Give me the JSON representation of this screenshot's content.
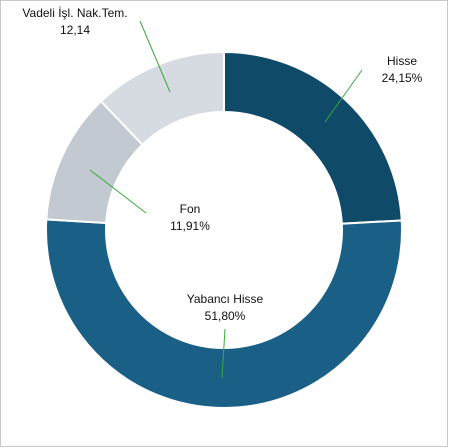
{
  "chart_data": {
    "type": "pie",
    "categories": [
      "Hisse",
      "Yabancı Hisse",
      "Fon",
      "Vadeli İşl.  Nak.Tem."
    ],
    "values": [
      24.15,
      51.8,
      11.91,
      12.14
    ],
    "value_labels": [
      "24,15%",
      "51,80%",
      "11,91%",
      "12,14"
    ],
    "colors": [
      "#0f4a69",
      "#1a5f86",
      "#c3c9d0",
      "#d6dbe1"
    ]
  }
}
